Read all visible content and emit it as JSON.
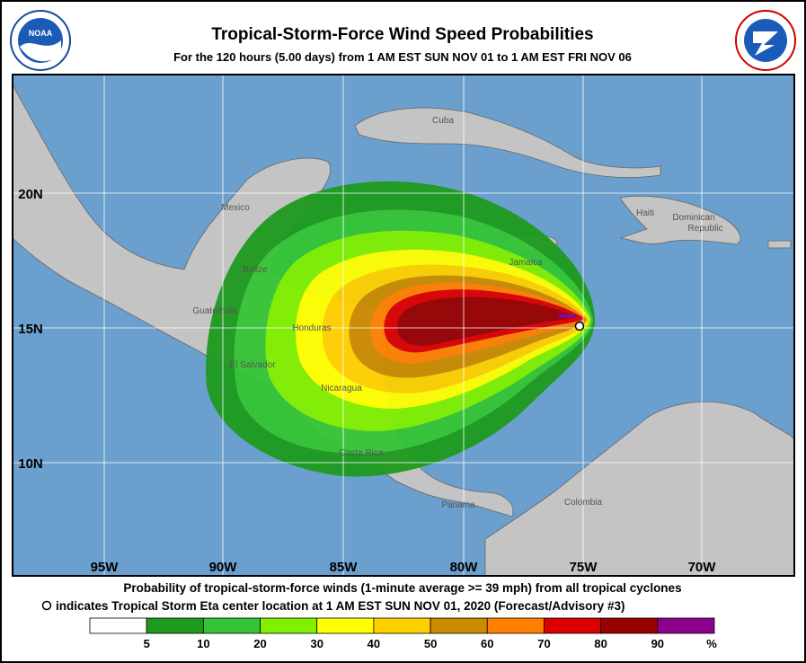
{
  "header": {
    "title": "Tropical-Storm-Force Wind Speed Probabilities",
    "subtitle": "For the 120 hours (5.00 days) from 1 AM EST SUN NOV 01 to 1 AM EST FRI NOV 06"
  },
  "map": {
    "longitudes": [
      "95W",
      "90W",
      "85W",
      "80W",
      "75W",
      "70W"
    ],
    "latitudes": [
      "20N",
      "15N",
      "10N"
    ],
    "places": [
      "Cuba",
      "Mexico",
      "Haiti",
      "Dominican",
      "Republic",
      "Jamaica",
      "Belize",
      "Guatemala",
      "Honduras",
      "El Salvador",
      "Nicaragua",
      "Costa Rica",
      "Panama",
      "Colombia"
    ]
  },
  "caption": {
    "line1": "Probability of tropical-storm-force winds (1-minute average >= 39 mph) from all tropical cyclones",
    "line2": "indicates Tropical Storm Eta center location at 1 AM EST SUN NOV 01, 2020 (Forecast/Advisory #3)"
  },
  "legend": {
    "colors": [
      "#ffffff",
      "#1e9a1e",
      "#35c435",
      "#80f000",
      "#ffff00",
      "#ffd000",
      "#cc8a00",
      "#ff8000",
      "#dd0000",
      "#990000",
      "#8c008c"
    ],
    "labels": [
      "5",
      "10",
      "20",
      "30",
      "40",
      "50",
      "60",
      "70",
      "80",
      "90"
    ],
    "unit": "%"
  }
}
